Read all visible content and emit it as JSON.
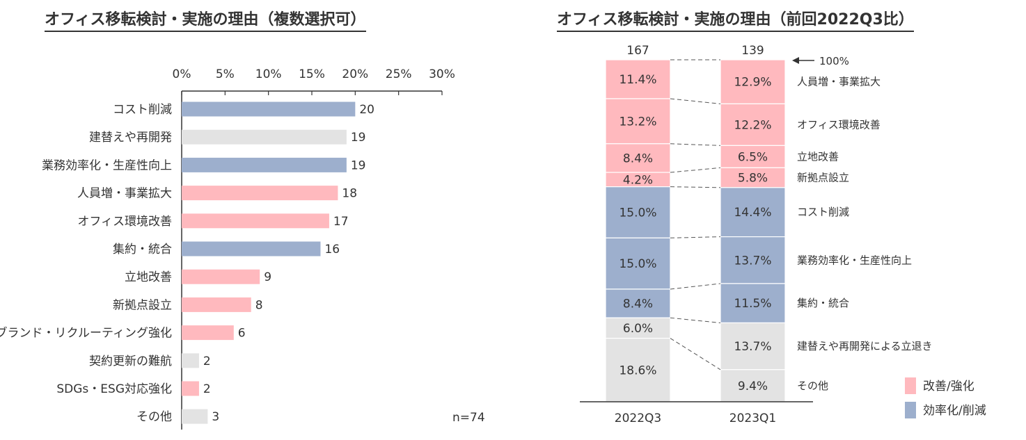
{
  "colors": {
    "pink": "#FFB9BE",
    "blue": "#9DAFCD",
    "gray": "#E3E3E3",
    "axis": "#333333"
  },
  "chart_data": [
    {
      "type": "bar",
      "orientation": "horizontal",
      "title": "オフィス移転検討・実施の理由（複数選択可）",
      "xlim": [
        0,
        30
      ],
      "x_ticks": [
        "0%",
        "5%",
        "10%",
        "15%",
        "20%",
        "25%",
        "30%"
      ],
      "categories": [
        "コスト削減",
        "建替えや再開発",
        "業務効率化・生産性向上",
        "人員増・事業拡大",
        "オフィス環境改善",
        "集約・統合",
        "立地改善",
        "新拠点設立",
        "ブランド・リクルーティング強化",
        "契約更新の難航",
        "SDGs・ESG対応強化",
        "その他"
      ],
      "values": [
        20,
        19,
        19,
        18,
        17,
        16,
        9,
        8,
        6,
        2,
        2,
        3
      ],
      "value_labels": [
        "20",
        "19",
        "19",
        "18",
        "17",
        "16",
        "9",
        "8",
        "6",
        "2",
        "2",
        "3"
      ],
      "bar_groups": [
        "blue",
        "gray",
        "blue",
        "pink",
        "pink",
        "blue",
        "pink",
        "pink",
        "pink",
        "gray",
        "pink",
        "gray"
      ],
      "n_label": "n=74"
    },
    {
      "type": "stacked_bar",
      "title": "オフィス移転検討・実施の理由（前回2022Q3比）",
      "categories": [
        "2022Q3",
        "2023Q1"
      ],
      "totals": [
        "167",
        "139"
      ],
      "reference_label": "100%",
      "segments": [
        {
          "name": "人員増・事業拡大",
          "group": "pink",
          "values": [
            11.4,
            12.9
          ],
          "labels": [
            "11.4%",
            "12.9%"
          ]
        },
        {
          "name": "オフィス環境改善",
          "group": "pink",
          "values": [
            13.2,
            12.2
          ],
          "labels": [
            "13.2%",
            "12.2%"
          ]
        },
        {
          "name": "立地改善",
          "group": "pink",
          "values": [
            8.4,
            6.5
          ],
          "labels": [
            "8.4%",
            "6.5%"
          ]
        },
        {
          "name": "新拠点設立",
          "group": "pink",
          "values": [
            4.2,
            5.8
          ],
          "labels": [
            "4.2%",
            "5.8%"
          ]
        },
        {
          "name": "コスト削減",
          "group": "blue",
          "values": [
            15.0,
            14.4
          ],
          "labels": [
            "15.0%",
            "14.4%"
          ]
        },
        {
          "name": "業務効率化・生産性向上",
          "group": "blue",
          "values": [
            15.0,
            13.7
          ],
          "labels": [
            "15.0%",
            "13.7%"
          ]
        },
        {
          "name": "集約・統合",
          "group": "blue",
          "values": [
            8.4,
            11.5
          ],
          "labels": [
            "8.4%",
            "11.5%"
          ]
        },
        {
          "name": "建替えや再開発による立退き",
          "group": "gray",
          "values": [
            6.0,
            13.7
          ],
          "labels": [
            "6.0%",
            "13.7%"
          ]
        },
        {
          "name": "その他",
          "group": "gray",
          "values": [
            18.6,
            9.4
          ],
          "labels": [
            "18.6%",
            "9.4%"
          ]
        }
      ],
      "legend": [
        {
          "label": "改善/強化",
          "group": "pink"
        },
        {
          "label": "効率化/削減",
          "group": "blue"
        }
      ]
    }
  ]
}
